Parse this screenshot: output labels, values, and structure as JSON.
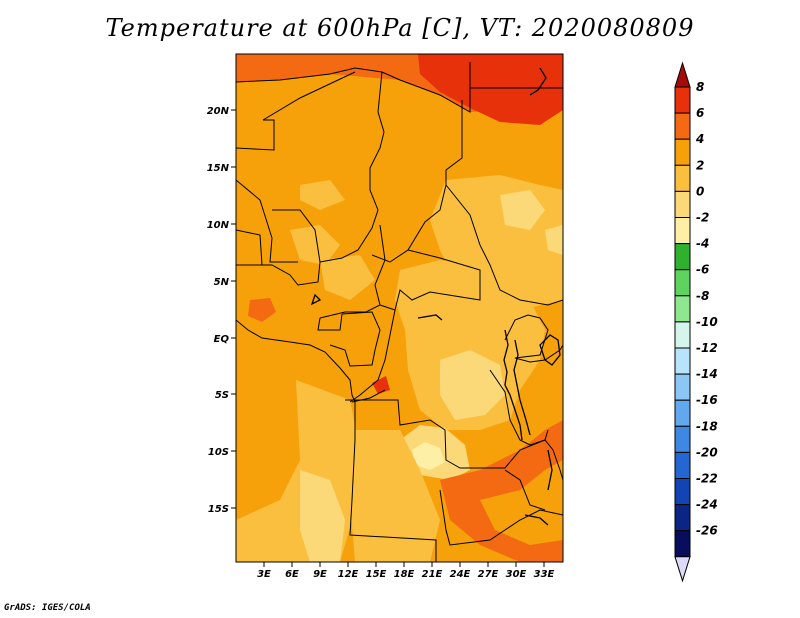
{
  "title": "Temperature at 600hPa [C], VT: 2020080809",
  "credit": "GrADS: IGES/COLA",
  "map": {
    "lat_labels": [
      "20N",
      "15N",
      "10N",
      "5N",
      "EQ",
      "5S",
      "10S",
      "15S"
    ],
    "lon_labels": [
      "3E",
      "6E",
      "9E",
      "12E",
      "15E",
      "18E",
      "21E",
      "24E",
      "27E",
      "30E",
      "33E"
    ]
  },
  "colorbar": {
    "labels": [
      "8",
      "6",
      "4",
      "2",
      "0",
      "-2",
      "-4",
      "-6",
      "-8",
      "-10",
      "-12",
      "-14",
      "-16",
      "-18",
      "-20",
      "-22",
      "-24",
      "-26"
    ],
    "colors": [
      "#a50b0b",
      "#e7310b",
      "#f36a12",
      "#f7a10a",
      "#fbbf40",
      "#fcd978",
      "#fdf0a6",
      "#2fb12f",
      "#5fd35f",
      "#8fe88f",
      "#d4f4ec",
      "#b7e3fb",
      "#8cc6f5",
      "#61a8ef",
      "#3e87e3",
      "#2466d2",
      "#1244b3",
      "#0b2584",
      "#070e5c"
    ],
    "overflow_bottom_color": "#dcdcfa"
  }
}
